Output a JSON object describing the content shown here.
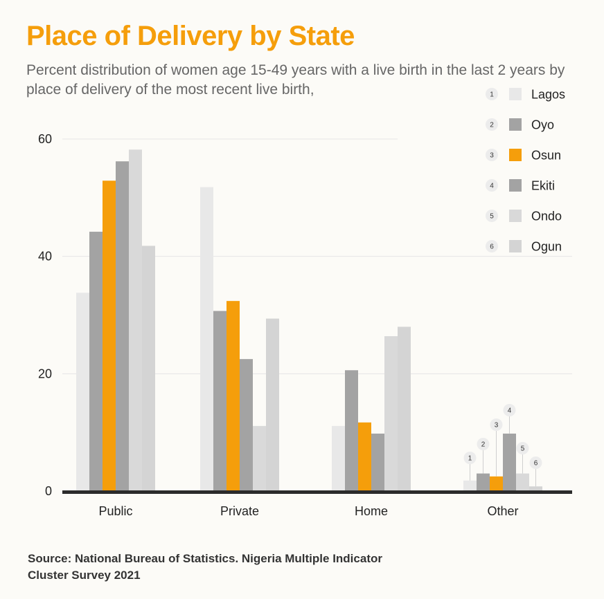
{
  "title": "Place of Delivery by State",
  "subtitle": "Percent distribution of women age 15-49 years with a live birth in the last 2 years by place of delivery of the most recent live birth,",
  "source": "Source: National Bureau of Statistics. Nigeria Multiple Indicator Cluster Survey 2021",
  "chart_data": {
    "type": "bar",
    "categories": [
      "Public",
      "Private",
      "Home",
      "Other"
    ],
    "yticks": [
      0,
      20,
      40,
      60
    ],
    "ylim": [
      0,
      60
    ],
    "grid": true,
    "legend_position": "top-right",
    "series": [
      {
        "name": "Lagos",
        "badge": "1",
        "color": "#e8e8e8",
        "values": [
          33.8,
          51.8,
          11.1,
          1.8
        ]
      },
      {
        "name": "Oyo",
        "badge": "2",
        "color": "#a3a3a3",
        "values": [
          44.2,
          30.7,
          20.6,
          3.0
        ]
      },
      {
        "name": "Osun",
        "badge": "3",
        "color": "#f59e0b",
        "values": [
          52.9,
          32.4,
          11.7,
          2.5
        ]
      },
      {
        "name": "Ekiti",
        "badge": "4",
        "color": "#a3a3a3",
        "values": [
          56.2,
          22.5,
          9.8,
          9.8
        ]
      },
      {
        "name": "Ondo",
        "badge": "5",
        "color": "#d9d9d9",
        "values": [
          58.2,
          11.1,
          26.4,
          3.0
        ]
      },
      {
        "name": "Ogun",
        "badge": "6",
        "color": "#d4d4d4",
        "values": [
          41.8,
          29.4,
          28.0,
          0.8
        ]
      }
    ]
  }
}
